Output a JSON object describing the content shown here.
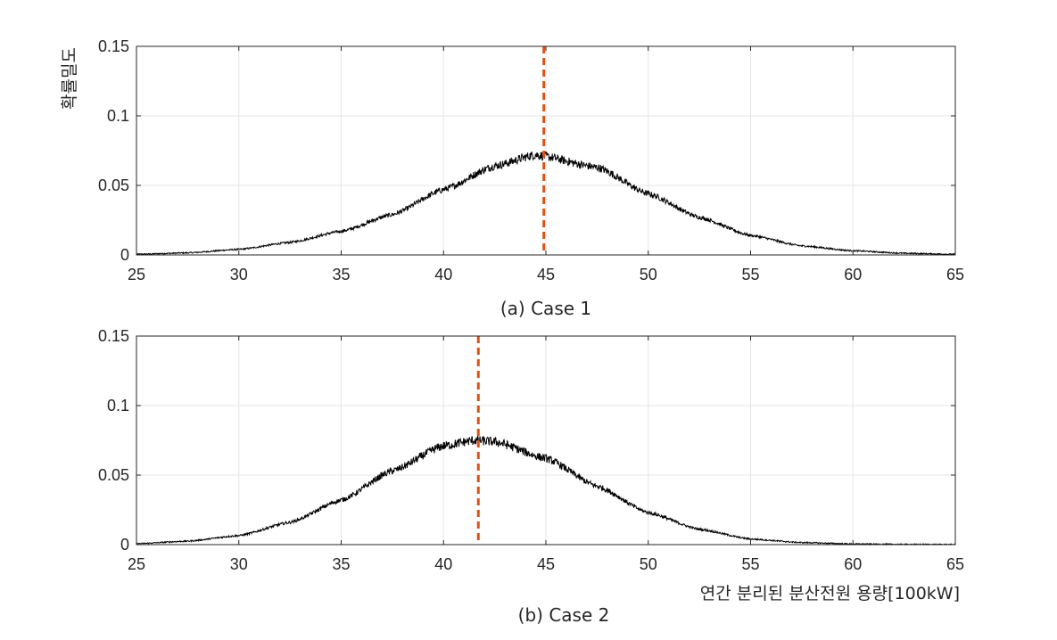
{
  "chart_data": [
    {
      "type": "line",
      "caption": "(a) Case 1",
      "ylabel": "확률밀도",
      "xlabel": "",
      "xlim": [
        25,
        65
      ],
      "ylim": [
        0,
        0.15
      ],
      "xticks": [
        "25",
        "30",
        "35",
        "40",
        "45",
        "50",
        "55",
        "60",
        "65"
      ],
      "yticks": [
        "0",
        "0.05",
        "0.1",
        "0.15"
      ],
      "grid": true,
      "colors": {
        "series": "#000000",
        "marker": "#d95319"
      },
      "series": [
        {
          "x": [
            25,
            27.5,
            30,
            32.5,
            35,
            37.5,
            40,
            42.5,
            44.5,
            47.5,
            50,
            52.5,
            55,
            57.5,
            60,
            62.5,
            65
          ],
          "y": [
            0.0005,
            0.0015,
            0.004,
            0.009,
            0.017,
            0.029,
            0.047,
            0.064,
            0.072,
            0.063,
            0.044,
            0.027,
            0.014,
            0.0065,
            0.003,
            0.0012,
            0.0005
          ]
        }
      ],
      "vline": 44.9
    },
    {
      "type": "line",
      "caption": "(b) Case 2",
      "ylabel": "",
      "xlabel": "연간 분리된 분산전원 용량[100kW]",
      "xlim": [
        25,
        65
      ],
      "ylim": [
        0,
        0.15
      ],
      "xticks": [
        "25",
        "30",
        "35",
        "40",
        "45",
        "50",
        "55",
        "60",
        "65"
      ],
      "yticks": [
        "0",
        "0.05",
        "0.1",
        "0.15"
      ],
      "grid": true,
      "colors": {
        "series": "#000000",
        "marker": "#d95319"
      },
      "series": [
        {
          "x": [
            25,
            27.5,
            30,
            32.5,
            35,
            37.5,
            40,
            41.5,
            42.5,
            45,
            47.5,
            50,
            52.5,
            55,
            57.5,
            60,
            62.5,
            65
          ],
          "y": [
            0.0007,
            0.0025,
            0.0065,
            0.016,
            0.032,
            0.053,
            0.071,
            0.075,
            0.074,
            0.062,
            0.042,
            0.023,
            0.011,
            0.004,
            0.0015,
            0.0005,
            0.0002,
            0.0001
          ]
        }
      ],
      "vline": 41.7
    }
  ]
}
